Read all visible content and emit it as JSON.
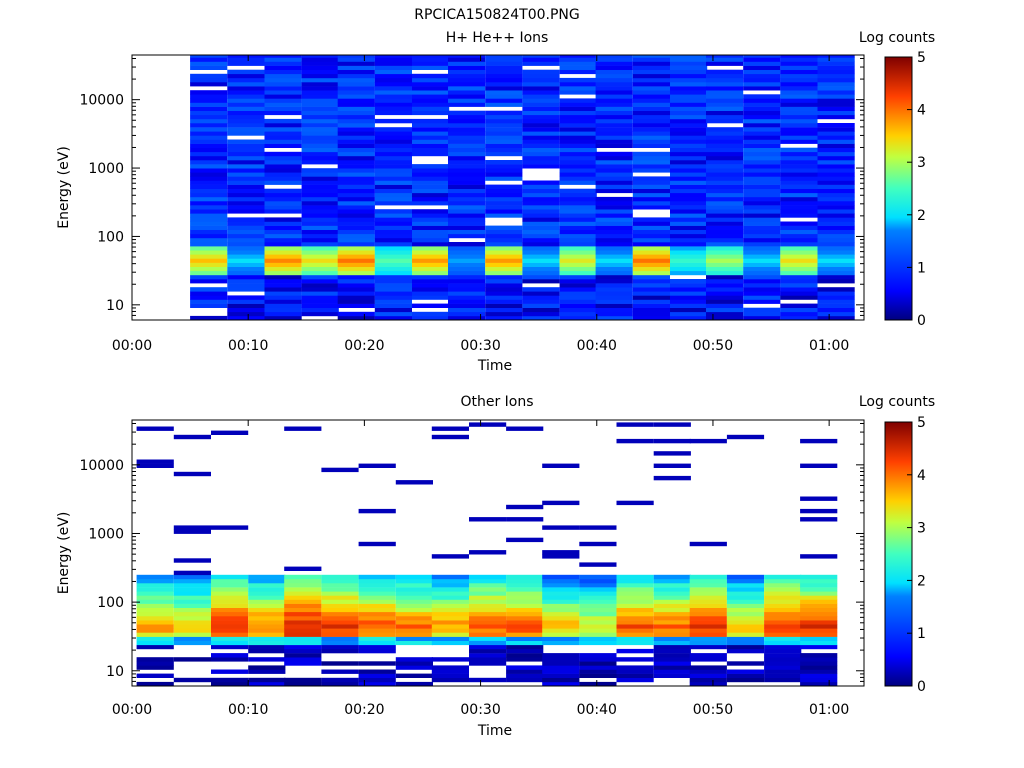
{
  "title": "RPCICA150824T00.PNG",
  "chart_data": [
    {
      "type": "heatmap",
      "title": "H+ He++ Ions",
      "xlabel": "Time",
      "ylabel": "Energy (eV)",
      "y_scale": "log",
      "ylim": [
        6,
        45000
      ],
      "xlim_minutes": [
        0,
        63
      ],
      "x_ticks": [
        "00:00",
        "00:10",
        "00:20",
        "00:30",
        "00:40",
        "00:50",
        "01:00"
      ],
      "y_ticks": [
        "10",
        "100",
        "1000",
        "10000"
      ],
      "colorbar": {
        "label": "Log counts",
        "range": [
          0,
          5
        ],
        "ticks": [
          "0",
          "1",
          "2",
          "3",
          "4",
          "5"
        ]
      },
      "time_bins_start_minutes": [
        1.9,
        5.0,
        8.2,
        11.4,
        14.6,
        17.7,
        20.9,
        24.1,
        27.2,
        30.4,
        33.6,
        36.8,
        39.9,
        43.1,
        46.3,
        49.4,
        52.6,
        55.8,
        59.0
      ],
      "bin_width_minutes": 3.18,
      "peak_band_energy_eV": [
        28,
        70
      ],
      "peak_log_counts": [
        0,
        3.6,
        2.0,
        3.9,
        3.4,
        4.0,
        2.6,
        3.8,
        1.8,
        3.8,
        2.0,
        3.3,
        2.0,
        4.0,
        2.4,
        3.0,
        2.0,
        3.4,
        2.0
      ],
      "background_log_counts": "about 0.5-1.5 across energies above 100 eV"
    },
    {
      "type": "heatmap",
      "title": "Other Ions",
      "xlabel": "Time",
      "ylabel": "Energy (eV)",
      "y_scale": "log",
      "ylim": [
        6,
        45000
      ],
      "xlim_minutes": [
        0,
        63
      ],
      "x_ticks": [
        "00:00",
        "00:10",
        "00:20",
        "00:30",
        "00:40",
        "00:50",
        "01:00"
      ],
      "y_ticks": [
        "10",
        "100",
        "1000",
        "10000"
      ],
      "colorbar": {
        "label": "Log counts",
        "range": [
          0,
          5
        ],
        "ticks": [
          "0",
          "1",
          "2",
          "3",
          "4",
          "5"
        ]
      },
      "time_bins_start_minutes": [
        0.4,
        3.6,
        6.8,
        10.0,
        13.1,
        16.3,
        19.5,
        22.7,
        25.8,
        29.0,
        32.2,
        35.3,
        38.5,
        41.7,
        44.9,
        48.0,
        51.2,
        54.4,
        57.5
      ],
      "bin_width_minutes": 3.18,
      "peak_band_energy_eV": [
        28,
        100
      ],
      "peak_log_counts": [
        3.8,
        3.6,
        4.4,
        4.0,
        4.6,
        4.4,
        4.2,
        4.0,
        3.8,
        4.2,
        4.2,
        3.6,
        3.4,
        4.2,
        4.0,
        4.4,
        3.6,
        4.4,
        4.4
      ],
      "background_log_counts": "sparse single counts (about 0.3) above 200 eV"
    }
  ]
}
